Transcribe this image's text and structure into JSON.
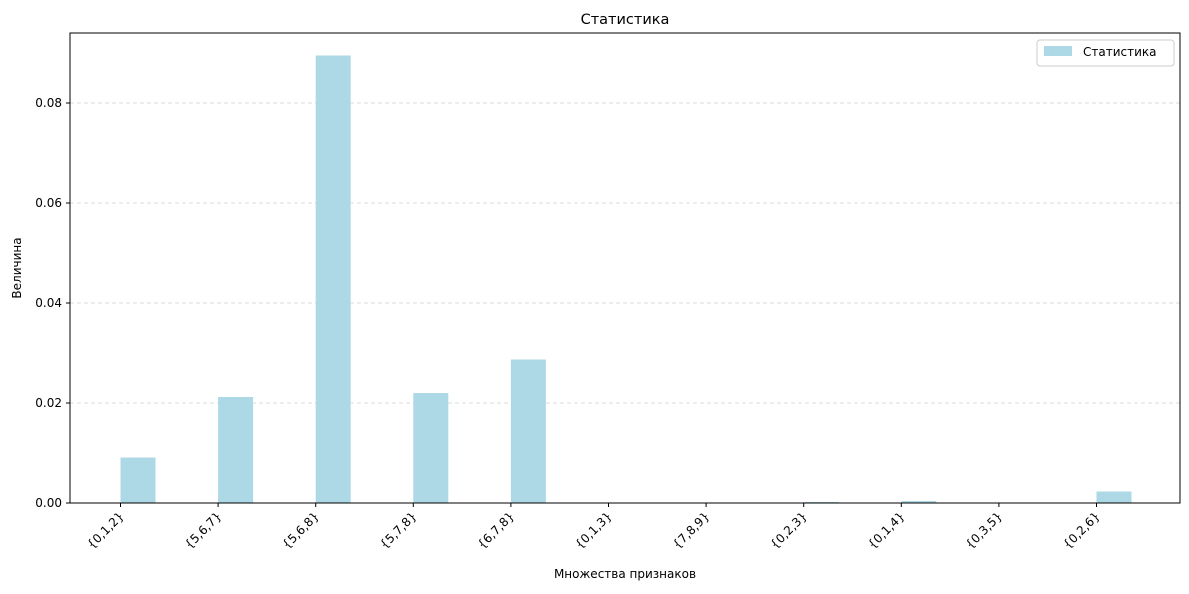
{
  "chart_data": {
    "type": "bar",
    "title": "Статистика",
    "xlabel": "Множества признаков",
    "ylabel": "Величина",
    "categories": [
      "{0,1,2}",
      "{5,6,7}",
      "{5,6,8}",
      "{5,7,8}",
      "{6,7,8}",
      "{0,1,3}",
      "{7,8,9}",
      "{0,2,3}",
      "{0,1,4}",
      "{0,3,5}",
      "{0,2,6}"
    ],
    "series": [
      {
        "name": "Статистика",
        "color": "#add8e6",
        "values": [
          0.0091,
          0.0212,
          0.0895,
          0.022,
          0.0287,
          0.0001,
          0.0,
          0.0002,
          0.0004,
          0.0,
          0.0023
        ]
      }
    ],
    "ylim": [
      0,
      0.094
    ],
    "yticks": [
      0.0,
      0.02,
      0.04,
      0.06,
      0.08
    ],
    "ytick_labels": [
      "0.00",
      "0.02",
      "0.04",
      "0.06",
      "0.08"
    ],
    "grid": "y-dashed",
    "legend_position": "top-right"
  }
}
